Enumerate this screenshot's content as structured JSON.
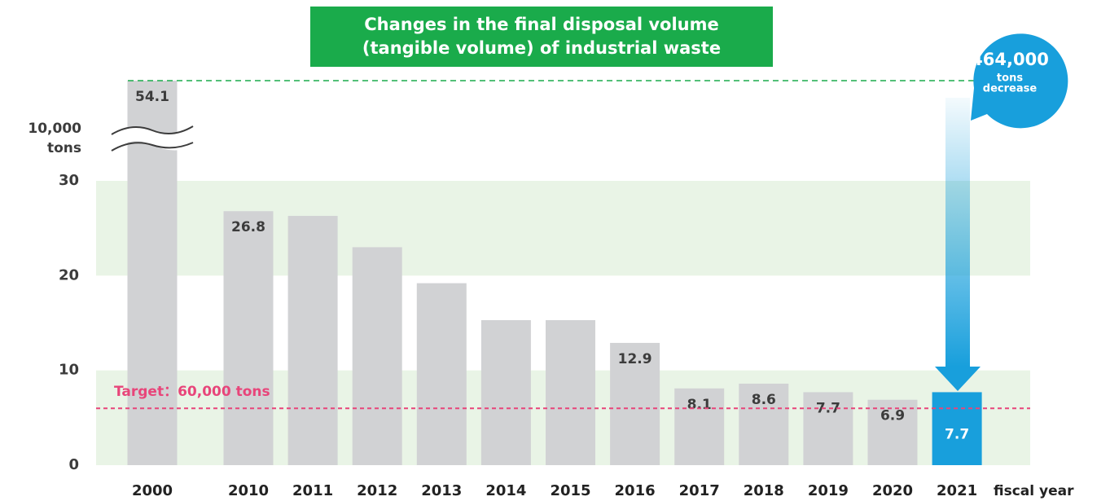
{
  "chart_data": {
    "type": "bar",
    "title": [
      "Changes in the final disposal volume",
      "(tangible volume) of industrial waste"
    ],
    "ylabel": [
      "10,000",
      "tons"
    ],
    "xlabel": "fiscal year",
    "categories": [
      "2000",
      "2010",
      "2011",
      "2012",
      "2013",
      "2014",
      "2015",
      "2016",
      "2017",
      "2018",
      "2019",
      "2020",
      "2021"
    ],
    "values": [
      54.1,
      26.8,
      26.3,
      23.0,
      19.2,
      15.3,
      15.3,
      12.9,
      8.1,
      8.6,
      7.7,
      6.9,
      7.7
    ],
    "value_labels": [
      "54.1",
      "26.8",
      null,
      null,
      null,
      null,
      null,
      "12.9",
      "8.1",
      "8.6",
      "7.7",
      "6.9",
      "7.7"
    ],
    "color": "#d1d2d4",
    "colors": [
      "#d1d2d4",
      "#d1d2d4",
      "#d1d2d4",
      "#d1d2d4",
      "#d1d2d4",
      "#d1d2d4",
      "#d1d2d4",
      "#d1d2d4",
      "#d1d2d4",
      "#d1d2d4",
      "#d1d2d4",
      "#d1d2d4",
      "#189fdc"
    ],
    "ylim": [
      0,
      30
    ],
    "yticks": [
      0,
      10,
      20,
      30
    ],
    "target": {
      "label": "Target：60,000 tons",
      "value": 6,
      "color": "#e8457a"
    },
    "callout": [
      "464,000",
      "tons",
      "decrease"
    ]
  }
}
